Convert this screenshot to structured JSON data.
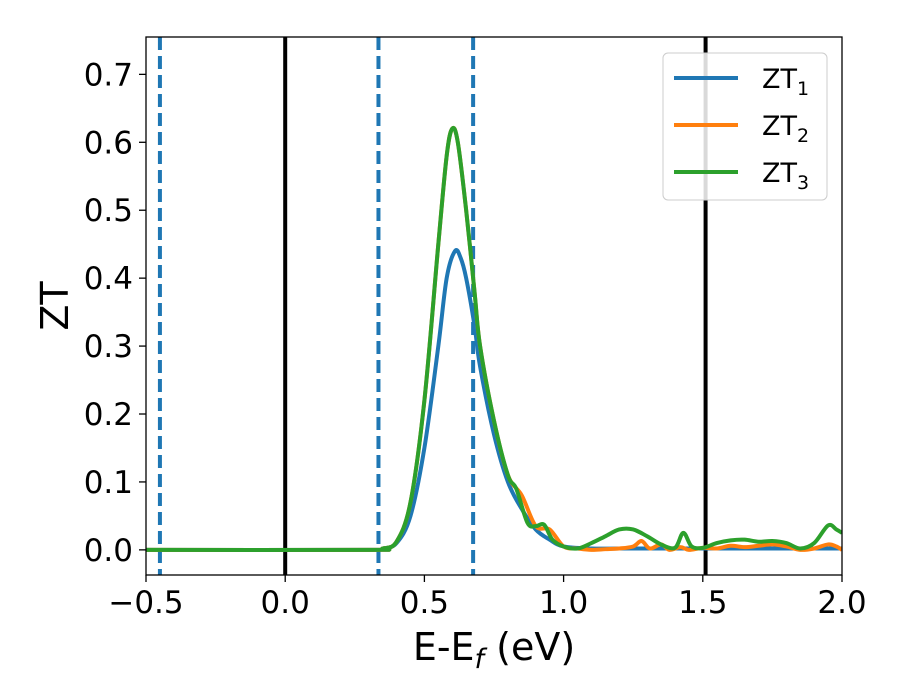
{
  "chart_data": {
    "type": "line",
    "xlabel_main": "E-E",
    "xlabel_sub": "f",
    "xlabel_unit": " (eV)",
    "ylabel": "ZT",
    "xlim": [
      -0.5,
      2.0
    ],
    "ylim": [
      -0.037,
      0.755
    ],
    "x_ticks": [
      -0.5,
      0.0,
      0.5,
      1.0,
      1.5,
      2.0
    ],
    "x_tick_labels": [
      "−0.5",
      "0.0",
      "0.5",
      "1.0",
      "1.5",
      "2.0"
    ],
    "y_ticks": [
      0.0,
      0.1,
      0.2,
      0.3,
      0.4,
      0.5,
      0.6,
      0.7
    ],
    "y_tick_labels": [
      "0.0",
      "0.1",
      "0.2",
      "0.3",
      "0.4",
      "0.5",
      "0.6",
      "0.7"
    ],
    "grid": false,
    "legend_position": "top-right",
    "vlines_solid": [
      0.0,
      1.51
    ],
    "vlines_dashed": [
      -0.45,
      0.335,
      0.675
    ],
    "vline_solid_color": "#000000",
    "vline_dashed_color": "#1f77b4",
    "series": [
      {
        "name": "ZT",
        "sub": "1",
        "color": "#1f77b4",
        "x": [
          -0.5,
          0.3,
          0.35,
          0.4,
          0.45,
          0.5,
          0.55,
          0.58,
          0.61,
          0.63,
          0.65,
          0.68,
          0.7,
          0.75,
          0.8,
          0.85,
          0.9,
          0.95,
          1.0,
          1.1,
          1.2,
          1.3,
          1.4,
          1.5,
          1.6,
          1.7,
          1.8,
          1.9,
          2.0
        ],
        "y": [
          0.0,
          0.0,
          0.002,
          0.01,
          0.05,
          0.15,
          0.3,
          0.4,
          0.44,
          0.43,
          0.4,
          0.33,
          0.27,
          0.17,
          0.1,
          0.06,
          0.03,
          0.015,
          0.005,
          0.002,
          0.002,
          0.002,
          0.002,
          0.002,
          0.002,
          0.002,
          0.002,
          0.002,
          0.002
        ]
      },
      {
        "name": "ZT",
        "sub": "2",
        "color": "#ff7f0e",
        "x": [
          -0.5,
          0.3,
          0.35,
          0.4,
          0.45,
          0.5,
          0.55,
          0.58,
          0.6,
          0.62,
          0.65,
          0.68,
          0.7,
          0.75,
          0.8,
          0.85,
          0.9,
          0.95,
          1.0,
          1.05,
          1.1,
          1.15,
          1.2,
          1.25,
          1.28,
          1.31,
          1.35,
          1.38,
          1.42,
          1.45,
          1.5,
          1.55,
          1.6,
          1.65,
          1.7,
          1.75,
          1.8,
          1.85,
          1.9,
          1.95,
          1.98,
          2.0
        ],
        "y": [
          0.0,
          0.0,
          0.002,
          0.012,
          0.07,
          0.22,
          0.45,
          0.58,
          0.62,
          0.6,
          0.5,
          0.38,
          0.3,
          0.19,
          0.11,
          0.08,
          0.035,
          0.03,
          0.005,
          0.002,
          0.0,
          0.001,
          0.002,
          0.005,
          0.013,
          0.002,
          0.008,
          0.0,
          0.004,
          0.0,
          0.003,
          0.002,
          0.006,
          0.004,
          0.006,
          0.008,
          0.005,
          0.0,
          0.002,
          0.008,
          0.005,
          0.0
        ]
      },
      {
        "name": "ZT",
        "sub": "3",
        "color": "#2ca02c",
        "x": [
          -0.5,
          0.3,
          0.35,
          0.4,
          0.45,
          0.5,
          0.55,
          0.58,
          0.6,
          0.62,
          0.65,
          0.68,
          0.7,
          0.75,
          0.8,
          0.83,
          0.87,
          0.9,
          0.93,
          0.96,
          1.0,
          1.05,
          1.1,
          1.15,
          1.2,
          1.25,
          1.3,
          1.35,
          1.4,
          1.43,
          1.46,
          1.5,
          1.55,
          1.6,
          1.65,
          1.7,
          1.75,
          1.8,
          1.85,
          1.9,
          1.95,
          1.98,
          2.0
        ],
        "y": [
          0.0,
          0.0,
          0.002,
          0.012,
          0.07,
          0.22,
          0.45,
          0.58,
          0.62,
          0.6,
          0.5,
          0.38,
          0.3,
          0.19,
          0.11,
          0.09,
          0.04,
          0.035,
          0.037,
          0.015,
          0.005,
          0.002,
          0.01,
          0.02,
          0.03,
          0.03,
          0.02,
          0.008,
          0.003,
          0.025,
          0.005,
          0.003,
          0.01,
          0.014,
          0.015,
          0.012,
          0.013,
          0.01,
          0.002,
          0.01,
          0.036,
          0.03,
          0.025
        ]
      }
    ]
  }
}
